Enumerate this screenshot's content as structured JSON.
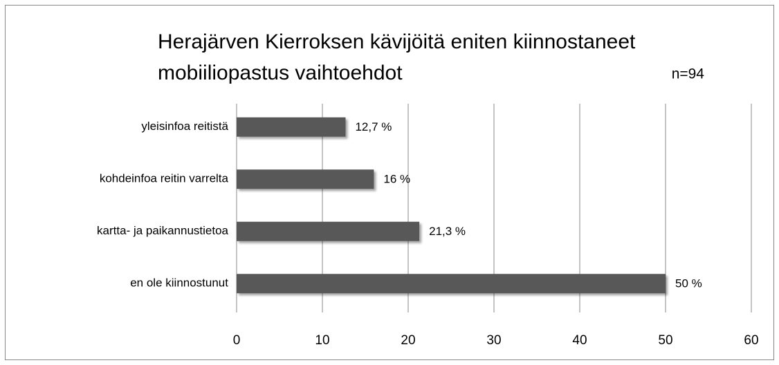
{
  "chart_data": {
    "type": "barh",
    "title": [
      "Herajärven Kierroksen kävijöitä eniten kiinnostaneet",
      "mobiiliopastus vaihtoehdot"
    ],
    "annotation": "n=94",
    "categories": [
      "yleisinfoa reitistä",
      "kohdeinfoa reitin varrelta",
      "kartta- ja paikannustietoa",
      "en ole kiinnostunut"
    ],
    "values": [
      12.7,
      16,
      21.3,
      50
    ],
    "value_labels": [
      "12,7 %",
      "16 %",
      "21,3 %",
      "50 %"
    ],
    "color": "#595959",
    "xlim": [
      0,
      60
    ],
    "xticks": [
      0,
      10,
      20,
      30,
      40,
      50,
      60
    ],
    "grid": true
  }
}
